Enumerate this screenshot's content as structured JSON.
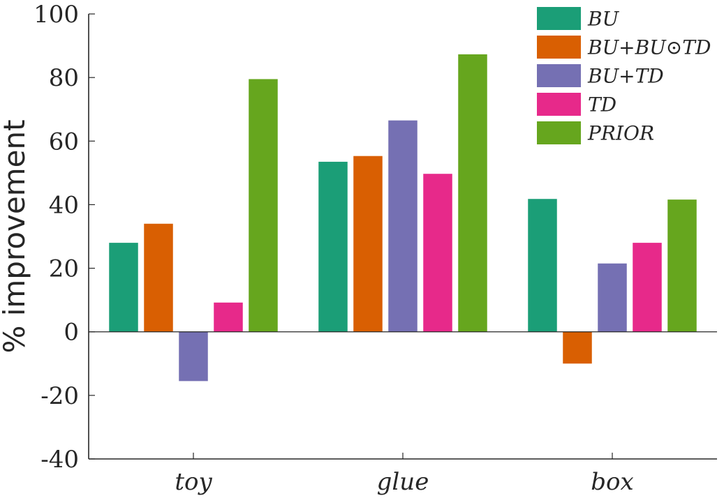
{
  "chart_data": {
    "type": "bar",
    "title": "",
    "xlabel": "",
    "ylabel": "% improvement",
    "ylim": [
      -40,
      100
    ],
    "yticks": [
      -40,
      -20,
      0,
      20,
      40,
      60,
      80,
      100
    ],
    "ytick_labels": [
      "-40",
      "-20",
      "0",
      "20",
      "40",
      "60",
      "80",
      "100"
    ],
    "categories": [
      "toy",
      "glue",
      "box"
    ],
    "series": [
      {
        "name": "BU",
        "color": "#1b9e77",
        "values": [
          28,
          53.5,
          41.8
        ]
      },
      {
        "name": "BU+BU⊙TD",
        "color": "#d95f02",
        "values": [
          34,
          55.3,
          -10
        ]
      },
      {
        "name": "BU+TD",
        "color": "#7570b3",
        "values": [
          -15.5,
          66.5,
          21.5
        ]
      },
      {
        "name": "TD",
        "color": "#e7298a",
        "values": [
          9.2,
          49.7,
          28
        ]
      },
      {
        "name": "PRIOR",
        "color": "#66a61e",
        "values": [
          79.5,
          87.3,
          41.6
        ]
      }
    ],
    "grid": false,
    "legend_position": "top-right"
  }
}
